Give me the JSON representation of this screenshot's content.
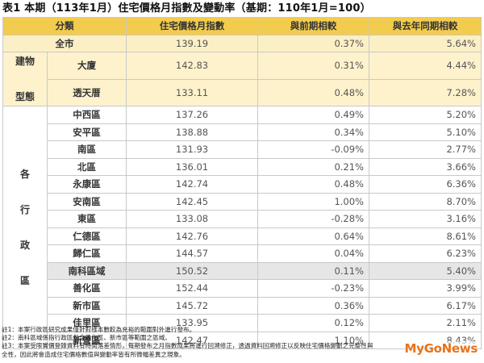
{
  "title": "表1 本期（113年1月）住宅價格月指數及變動率（基期：110年1月=100）",
  "headers": [
    "分類",
    "住宅價格月指數",
    "與前期相較",
    "與去年同期相較"
  ],
  "total": {
    "name": "全市",
    "index": "139.19",
    "mom": "0.37%",
    "yoy": "5.64%"
  },
  "building_group": "建物型態",
  "building_types": [
    {
      "name": "大廈",
      "index": "142.83",
      "mom": "0.31%",
      "yoy": "4.44%"
    },
    {
      "name": "透天厝",
      "index": "133.11",
      "mom": "0.48%",
      "yoy": "7.28%"
    }
  ],
  "district_group": "各行政區",
  "districts": [
    {
      "name": "中西區",
      "index": "137.26",
      "mom": "0.49%",
      "yoy": "5.20%"
    },
    {
      "name": "安平區",
      "index": "138.88",
      "mom": "0.34%",
      "yoy": "5.10%"
    },
    {
      "name": "南區",
      "index": "131.93",
      "mom": "-0.09%",
      "yoy": "2.77%"
    },
    {
      "name": "北區",
      "index": "136.01",
      "mom": "0.21%",
      "yoy": "3.66%"
    },
    {
      "name": "永康區",
      "index": "142.74",
      "mom": "0.48%",
      "yoy": "6.36%"
    },
    {
      "name": "安南區",
      "index": "142.45",
      "mom": "1.00%",
      "yoy": "8.70%"
    },
    {
      "name": "東區",
      "index": "133.08",
      "mom": "-0.28%",
      "yoy": "3.16%"
    },
    {
      "name": "仁德區",
      "index": "142.76",
      "mom": "0.64%",
      "yoy": "8.61%"
    },
    {
      "name": "歸仁區",
      "index": "144.57",
      "mom": "0.04%",
      "yoy": "6.23%"
    },
    {
      "name": "南科區域",
      "index": "150.52",
      "mom": "0.11%",
      "yoy": "5.40%",
      "highlight": true
    },
    {
      "name": "善化區",
      "index": "152.44",
      "mom": "-0.23%",
      "yoy": "3.99%"
    },
    {
      "name": "新市區",
      "index": "145.72",
      "mom": "0.36%",
      "yoy": "6.17%"
    },
    {
      "name": "佳里區",
      "index": "133.95",
      "mom": "0.12%",
      "yoy": "2.11%"
    },
    {
      "name": "新營區",
      "index": "142.47",
      "mom": "1.10%",
      "yoy": "8.43%"
    }
  ],
  "notes": [
    "註1：本案行政區研究成果僅針對樣本數較為充裕的範圍對外進行發布。",
    "註2：南科區域係指行政區包含善化區、新市區等範圍之區域。",
    "註3：本案受限實價登錄資料有時間落差情形，每期發布之月指數成果將進行回溯修正，透過資料回溯修正以反映住宅價格變動之完整性與",
    "全性，因此將會造成住宅價格數值與變動率皆有所微幅差異之現象。"
  ],
  "logo": {
    "prefix": "My",
    "main": "GoNews",
    "suffix": ""
  }
}
